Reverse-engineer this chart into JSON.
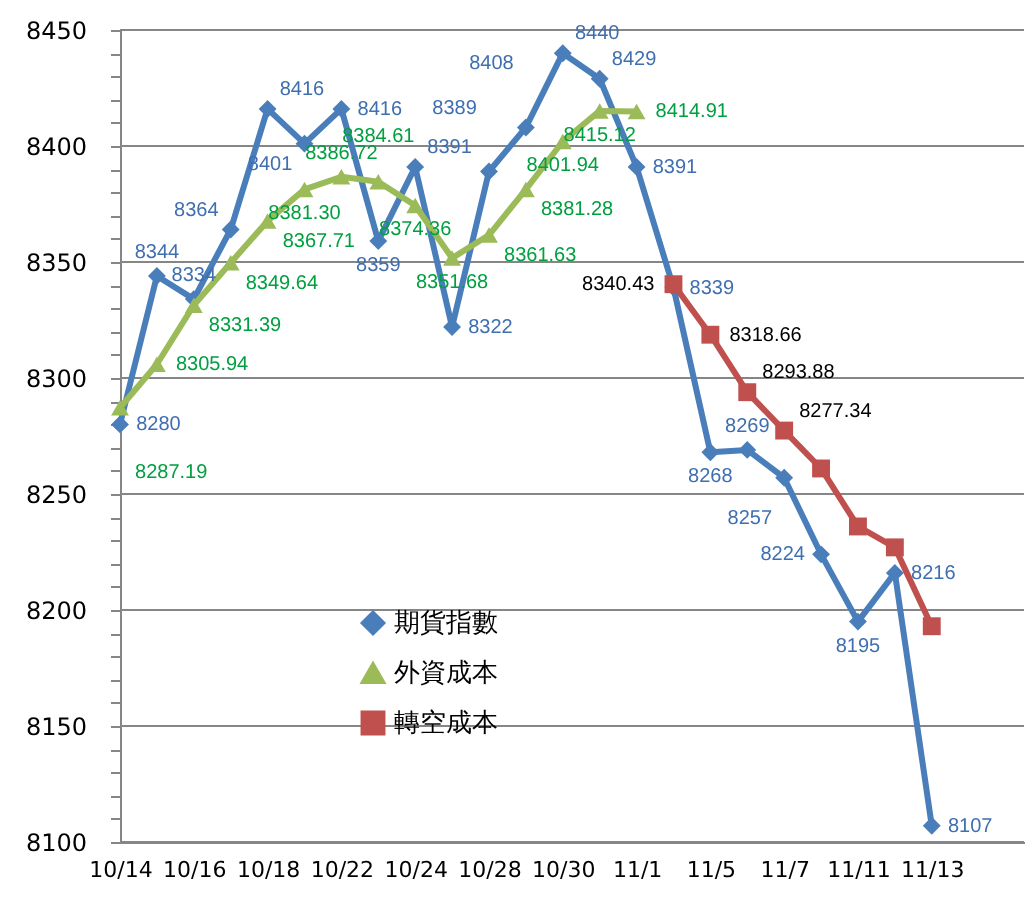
{
  "chart_data": {
    "type": "line",
    "categories": [
      "10/14",
      null,
      "10/16",
      null,
      "10/18",
      null,
      "10/22",
      null,
      "10/24",
      null,
      "10/28",
      null,
      "10/30",
      null,
      "11/1",
      null,
      "11/5",
      null,
      "11/7",
      null,
      "11/11",
      null,
      "11/13"
    ],
    "series": [
      {
        "name": "期貨指數",
        "color": "#4a7ebb",
        "marker": "diamond",
        "values": [
          8280,
          8344,
          8334,
          8364,
          8416,
          8401,
          8416,
          8359,
          8391,
          8322,
          8389,
          8408,
          8440,
          8429,
          8391,
          8339,
          8268,
          8269,
          8257,
          8224,
          8195,
          8216,
          8107
        ],
        "value_labels": [
          "8280",
          "8344",
          "8334",
          "8364",
          "8416",
          "8401",
          "8416",
          "8359",
          "8391",
          "8322",
          "8389",
          "8408",
          "8440",
          "8429",
          "8391",
          "8339",
          "8268",
          "8269",
          "8257",
          "8224",
          "8195",
          "8216",
          "8107"
        ]
      },
      {
        "name": "外資成本",
        "color": "#9bbb59",
        "marker": "triangle",
        "values": [
          8287.19,
          8305.94,
          8331.39,
          8349.64,
          8367.71,
          8381.3,
          8386.72,
          8384.61,
          8374.36,
          8351.68,
          8361.63,
          8381.28,
          8401.94,
          8415.12,
          8414.91,
          null,
          null,
          null,
          null,
          null,
          null,
          null,
          null
        ],
        "value_labels": [
          "8287.19",
          "8305.94",
          "8331.39",
          "8349.64",
          "8367.71",
          "8381.30",
          "8386.72",
          "8384.61",
          "8374.36",
          "8351.68",
          "8361.63",
          "8381.28",
          "8401.94",
          "8415.12",
          "8414.91",
          null,
          null,
          null,
          null,
          null,
          null,
          null,
          null
        ]
      },
      {
        "name": "轉空成本",
        "color": "#c0504d",
        "marker": "square",
        "values": [
          null,
          null,
          null,
          null,
          null,
          null,
          null,
          null,
          null,
          null,
          null,
          null,
          null,
          null,
          null,
          8340.43,
          8318.66,
          8293.88,
          8277.34,
          8261,
          8236,
          8227,
          8193
        ],
        "value_labels": [
          null,
          null,
          null,
          null,
          null,
          null,
          null,
          null,
          null,
          null,
          null,
          null,
          null,
          null,
          null,
          "8340.43",
          "8318.66",
          "8293.88",
          "8277.34",
          null,
          null,
          null,
          null
        ]
      }
    ],
    "ylim": [
      8100,
      8450
    ],
    "yticks": [
      8100,
      {
        "value": 8110,
        "label": null
      },
      {
        "value": 8120,
        "label": null
      },
      {
        "value": 8130,
        "label": null
      },
      {
        "value": 8140,
        "label": null
      },
      8150,
      {
        "value": 8160,
        "label": null
      },
      {
        "value": 8170,
        "label": null
      },
      {
        "value": 8180,
        "label": null
      },
      {
        "value": 8190,
        "label": null
      },
      8200,
      {
        "value": 8210,
        "label": null
      },
      {
        "value": 8220,
        "label": null
      },
      {
        "value": 8230,
        "label": null
      },
      {
        "value": 8240,
        "label": null
      },
      8250,
      {
        "value": 8260,
        "label": null
      },
      {
        "value": 8270,
        "label": null
      },
      {
        "value": 8280,
        "label": null
      },
      {
        "value": 8290,
        "label": null
      },
      8300,
      {
        "value": 8310,
        "label": null
      },
      {
        "value": 8320,
        "label": null
      },
      {
        "value": 8330,
        "label": null
      },
      {
        "value": 8340,
        "label": null
      },
      8350,
      {
        "value": 8360,
        "label": null
      },
      {
        "value": 8370,
        "label": null
      },
      {
        "value": 8380,
        "label": null
      },
      {
        "value": 8390,
        "label": null
      },
      8400,
      {
        "value": 8410,
        "label": null
      },
      {
        "value": 8420,
        "label": null
      },
      {
        "value": 8430,
        "label": null
      },
      {
        "value": 8440,
        "label": null
      },
      8450
    ],
    "grid": "y",
    "legend": "bottom left",
    "line_style": "solid"
  }
}
